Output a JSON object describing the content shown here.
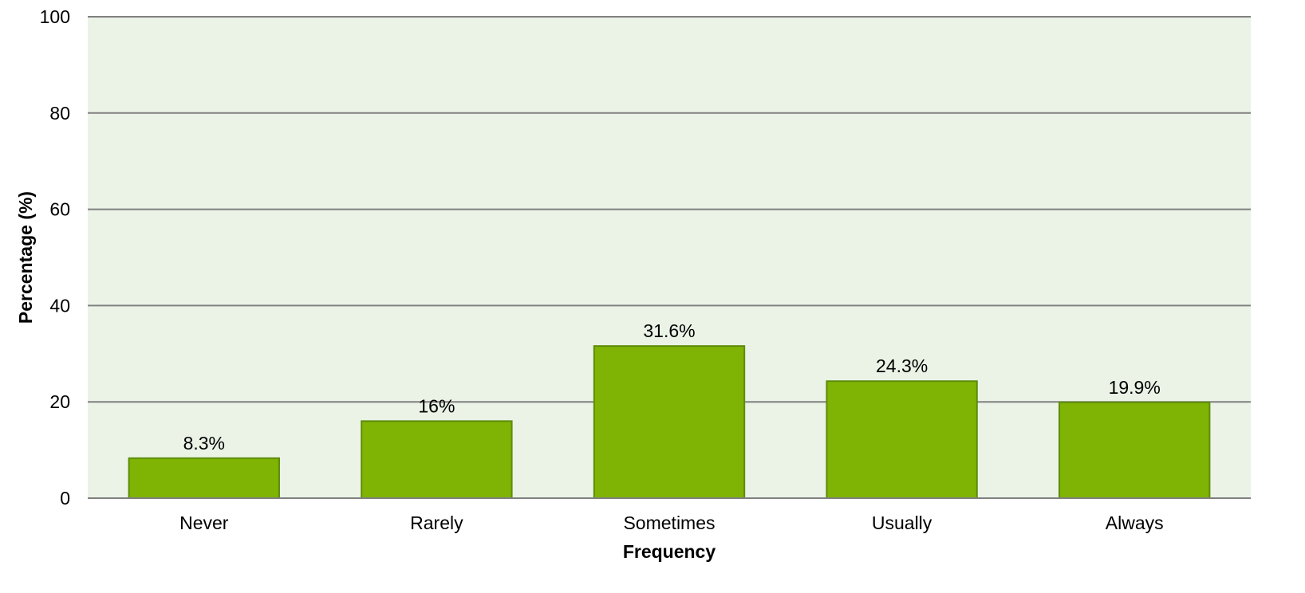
{
  "chart_data": {
    "type": "bar",
    "title": "",
    "xlabel": "Frequency",
    "ylabel": "Percentage (%)",
    "categories": [
      "Never",
      "Rarely",
      "Sometimes",
      "Usually",
      "Always"
    ],
    "values": [
      8.3,
      16,
      31.6,
      24.3,
      19.9
    ],
    "data_labels": [
      "8.3%",
      "16%",
      "31.6%",
      "24.3%",
      "19.9%"
    ],
    "ylim": [
      0,
      100
    ],
    "yticks": [
      0,
      20,
      40,
      60,
      80,
      100
    ],
    "ytick_labels": [
      "0",
      "20",
      "40",
      "60",
      "80",
      "100"
    ],
    "grid": true,
    "legend": "none",
    "colors": {
      "plot_background": "#EAF3E6",
      "bar_fill": "#7FB304",
      "bar_stroke": "#5E8C0A",
      "grid": "#808080"
    }
  }
}
